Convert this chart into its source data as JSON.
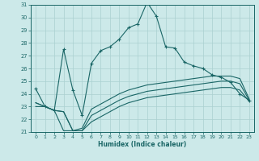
{
  "xlabel": "Humidex (Indice chaleur)",
  "background_color": "#cce9e9",
  "grid_color": "#aad0d0",
  "line_color": "#1a6666",
  "xlim": [
    -0.5,
    23.5
  ],
  "ylim": [
    21,
    31
  ],
  "x_ticks": [
    0,
    1,
    2,
    3,
    4,
    5,
    6,
    7,
    8,
    9,
    10,
    11,
    12,
    13,
    14,
    15,
    16,
    17,
    18,
    19,
    20,
    21,
    22,
    23
  ],
  "y_ticks": [
    21,
    22,
    23,
    24,
    25,
    26,
    27,
    28,
    29,
    30,
    31
  ],
  "series1_x": [
    0,
    1,
    2,
    3,
    4,
    5,
    6,
    7,
    8,
    9,
    10,
    11,
    12,
    13,
    14,
    15,
    16,
    17,
    18,
    19,
    20,
    21,
    22,
    23
  ],
  "series1_y": [
    24.4,
    23.0,
    22.7,
    27.5,
    24.3,
    22.3,
    26.4,
    27.4,
    27.7,
    28.3,
    29.2,
    29.5,
    31.2,
    30.1,
    27.7,
    27.6,
    26.5,
    26.2,
    26.0,
    25.5,
    25.3,
    24.9,
    24.0,
    23.5
  ],
  "series2_x": [
    0,
    1,
    2,
    3,
    4,
    5,
    6,
    7,
    8,
    9,
    10,
    11,
    12,
    13,
    14,
    15,
    16,
    17,
    18,
    19,
    20,
    21,
    22,
    23
  ],
  "series2_y": [
    23.3,
    23.0,
    22.7,
    22.6,
    21.1,
    21.3,
    22.8,
    23.2,
    23.6,
    24.0,
    24.3,
    24.5,
    24.7,
    24.8,
    24.9,
    25.0,
    25.1,
    25.2,
    25.3,
    25.4,
    25.4,
    25.4,
    25.2,
    23.6
  ],
  "series3_x": [
    0,
    1,
    2,
    3,
    4,
    5,
    6,
    7,
    8,
    9,
    10,
    11,
    12,
    13,
    14,
    15,
    16,
    17,
    18,
    19,
    20,
    21,
    22,
    23
  ],
  "series3_y": [
    23.3,
    23.0,
    22.7,
    22.6,
    21.1,
    21.1,
    22.3,
    22.7,
    23.1,
    23.5,
    23.8,
    24.0,
    24.2,
    24.3,
    24.4,
    24.5,
    24.6,
    24.7,
    24.8,
    24.9,
    25.0,
    25.0,
    24.8,
    23.5
  ],
  "series4_x": [
    0,
    1,
    2,
    3,
    4,
    5,
    6,
    7,
    8,
    9,
    10,
    11,
    12,
    13,
    14,
    15,
    16,
    17,
    18,
    19,
    20,
    21,
    22,
    23
  ],
  "series4_y": [
    23.0,
    23.0,
    22.7,
    21.1,
    21.1,
    21.1,
    21.8,
    22.2,
    22.6,
    23.0,
    23.3,
    23.5,
    23.7,
    23.8,
    23.9,
    24.0,
    24.1,
    24.2,
    24.3,
    24.4,
    24.5,
    24.5,
    24.3,
    23.4
  ]
}
